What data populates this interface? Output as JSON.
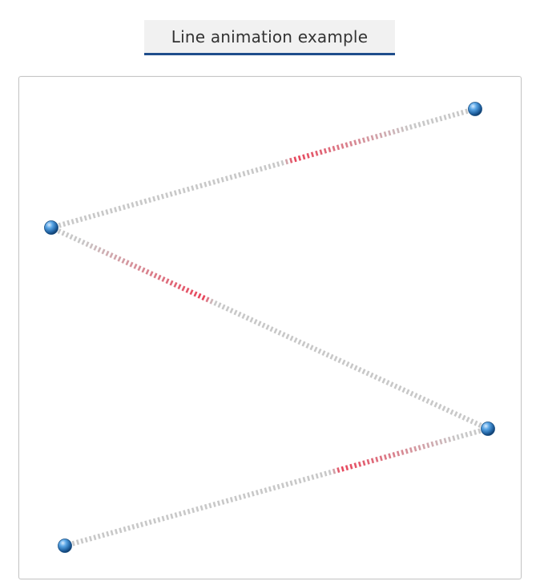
{
  "title": "Line animation example",
  "colors": {
    "tab_background": "#f1f1f1",
    "tab_underline": "#1f4e8c",
    "line_base": "#c8c8c8",
    "line_highlight": "#e8445a",
    "node": "#2f7fc4"
  },
  "lines": [
    {
      "name": "segment-1",
      "from": "node-top-right",
      "to": "node-left",
      "highlight_position": 0.43
    },
    {
      "name": "segment-2",
      "from": "node-left",
      "to": "node-right",
      "highlight_position": 0.35
    },
    {
      "name": "segment-3",
      "from": "node-right",
      "to": "node-bottom-left",
      "highlight_position": 0.35
    }
  ]
}
